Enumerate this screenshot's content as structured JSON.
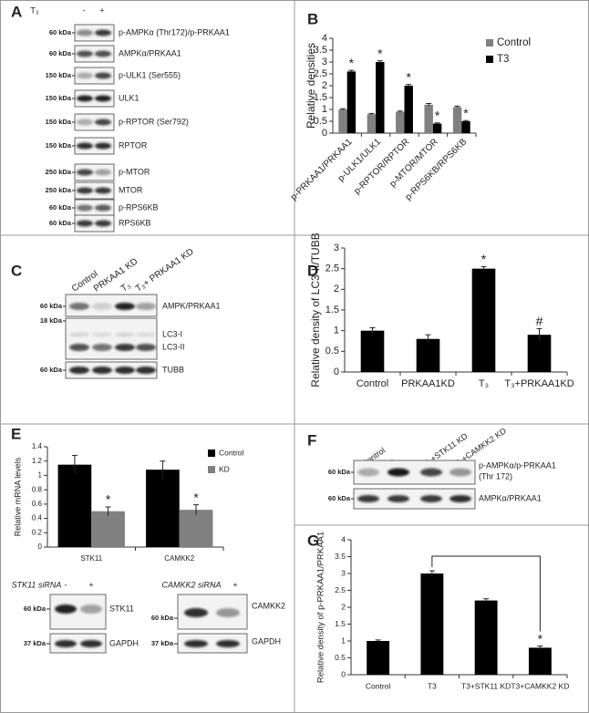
{
  "panel_labels": [
    "A",
    "B",
    "C",
    "D",
    "E",
    "F",
    "G"
  ],
  "chart_data": [
    {
      "type": "bar",
      "ylabel": "Relative densities",
      "categories": [
        "p-PRKAA1/PRKAA1",
        "p-ULK1/ULK1",
        "p-RPTOR/RPTOR",
        "p-MTOR/MTOR",
        "p-RPS6KB/RPS6KB"
      ],
      "series": [
        {
          "name": "Control",
          "color": "#808080",
          "values": [
            1.0,
            0.8,
            0.9,
            1.2,
            1.1
          ],
          "errors": [
            0.03,
            0.03,
            0.03,
            0.05,
            0.04
          ]
        },
        {
          "name": "T3",
          "color": "#000000",
          "values": [
            2.6,
            3.0,
            2.0,
            0.4,
            0.5
          ],
          "errors": [
            0.05,
            0.05,
            0.05,
            0.03,
            0.03
          ],
          "significance": [
            "*",
            "*",
            "*",
            "*",
            "*"
          ]
        }
      ],
      "ylim": [
        0,
        4
      ],
      "yticks": [
        0,
        0.5,
        1,
        1.5,
        2,
        2.5,
        3,
        3.5,
        4
      ],
      "legend": "upper right"
    },
    {
      "type": "bar",
      "ylabel": "Relative density of LC3-II/TUBB",
      "categories": [
        "Control",
        "PRKAA1KD",
        "T₃",
        "T₃+PRKAA1KD"
      ],
      "values": [
        1.0,
        0.8,
        2.5,
        0.9
      ],
      "errors": [
        0.07,
        0.1,
        0.05,
        0.15
      ],
      "significance": [
        null,
        null,
        "*",
        "#"
      ],
      "color": "#000000",
      "ylim": [
        0,
        3
      ],
      "yticks": [
        0,
        0.5,
        1,
        1.5,
        2,
        2.5,
        3
      ]
    },
    {
      "type": "bar",
      "ylabel": "Relative mRNA levels",
      "categories": [
        "STK11",
        "CAMKK2"
      ],
      "series": [
        {
          "name": "Control",
          "color": "#000000",
          "values": [
            1.15,
            1.08
          ],
          "errors": [
            0.13,
            0.12
          ]
        },
        {
          "name": "KD",
          "color": "#808080",
          "values": [
            0.5,
            0.52
          ],
          "errors": [
            0.06,
            0.07
          ],
          "significance": [
            "*",
            "*"
          ]
        }
      ],
      "ylim": [
        0,
        1.4
      ],
      "yticks": [
        0,
        0.2,
        0.4,
        0.6,
        0.8,
        1,
        1.2,
        1.4
      ],
      "legend": "upper right"
    },
    {
      "type": "bar",
      "ylabel": "Relative density of p-PRKAA1/PRKAA1",
      "categories": [
        "Control",
        "T3",
        "T3+STK11 KD",
        "T3+CAMKK2 KD"
      ],
      "values": [
        1.0,
        3.0,
        2.2,
        0.8
      ],
      "errors": [
        0.03,
        0.08,
        0.05,
        0.05
      ],
      "significance": [
        null,
        null,
        null,
        "*"
      ],
      "color": "#000000",
      "ylim": [
        0,
        4
      ],
      "yticks": [
        0,
        0.5,
        1,
        1.5,
        2,
        2.5,
        3,
        3.5,
        4
      ]
    }
  ],
  "blots": {
    "A": {
      "header": "T₃",
      "lanes": [
        "-",
        "+"
      ],
      "rows": [
        {
          "marker": "60 kDa",
          "label": "p-AMPKα (Thr172)/p-PRKAA1"
        },
        {
          "marker": "60 kDa",
          "label": "AMPKα/PRKAA1"
        },
        {
          "marker": "150 kDa",
          "label": "p-ULK1 (Ser555)"
        },
        {
          "marker": "150 kDa",
          "label": "ULK1"
        },
        {
          "marker": "150 kDa",
          "label": "p-RPTOR (Ser792)"
        },
        {
          "marker": "150 kDa",
          "label": "RPTOR"
        },
        {
          "marker": "250 kDa",
          "label": "p-MTOR"
        },
        {
          "marker": "250 kDa",
          "label": "MTOR"
        },
        {
          "marker": "60 kDa",
          "label": "p-RPS6KB"
        },
        {
          "marker": "60 kDa",
          "label": "RPS6KB"
        }
      ]
    },
    "C": {
      "lanes": [
        "Control",
        "PRKAA1 KD",
        "T₃",
        "T₃+ PRKAA1 KD"
      ],
      "rows": [
        {
          "marker": "60 kDa",
          "label": "AMPK/PRKAA1"
        },
        {
          "marker": "18 kDa",
          "label": "LC3-I"
        },
        {
          "label": "LC3-II"
        },
        {
          "marker": "60 kDa",
          "label": "TUBB"
        }
      ]
    },
    "F": {
      "lanes": [
        "Control",
        "T₃",
        "T₃+STK11 KD",
        "T₃+CAMKK2 KD"
      ],
      "rows": [
        {
          "marker": "60 kDa",
          "label": "p-AMPKα/p-PRKAA1",
          "label2": "(Thr 172)"
        },
        {
          "marker": "60 kDa",
          "label": "AMPKα/PRKAA1"
        }
      ]
    },
    "E1": {
      "header": "STK11 siRNA",
      "lanes": [
        "-",
        "+"
      ],
      "rows": [
        {
          "marker": "60 kDa",
          "label": "STK11"
        },
        {
          "marker": "37 kDa",
          "label": "GAPDH"
        }
      ]
    },
    "E2": {
      "header": "CAMKK2 siRNA",
      "lanes": [
        "-",
        "+"
      ],
      "rows": [
        {
          "marker": "60 kDa",
          "label": "CAMKK2"
        },
        {
          "marker": "37 kDa",
          "label": "GAPDH"
        }
      ]
    }
  }
}
